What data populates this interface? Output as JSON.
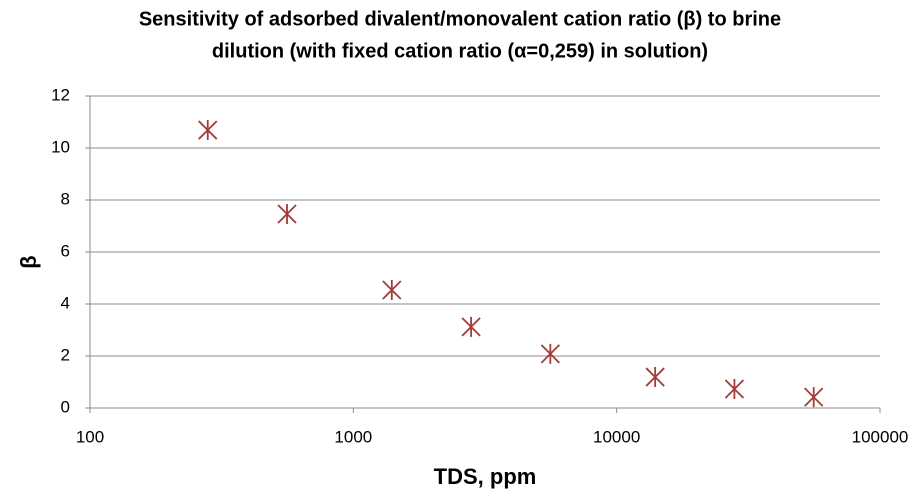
{
  "chart_data": {
    "type": "scatter",
    "title": [
      "Sensitivity of adsorbed divalent/monovalent cation ratio (β) to brine",
      "dilution (with fixed  cation ratio (α=0,259) in solution)"
    ],
    "x_label": "TDS, ppm",
    "y_label": "β",
    "series": [
      {
        "color": "#a23c3a",
        "x": [
          280,
          560,
          1400,
          2800,
          5600,
          14000,
          28000,
          56000
        ],
        "values": [
          10.69,
          7.46,
          4.54,
          3.12,
          2.08,
          1.19,
          0.73,
          0.42
        ]
      }
    ],
    "xscale": "log",
    "xlim": [
      100,
      100000
    ],
    "xticks": [
      100,
      1000,
      10000,
      100000
    ],
    "ylim": [
      0,
      12
    ],
    "yticks": [
      0,
      2,
      4,
      6,
      8,
      10,
      12
    ],
    "grid": true
  }
}
